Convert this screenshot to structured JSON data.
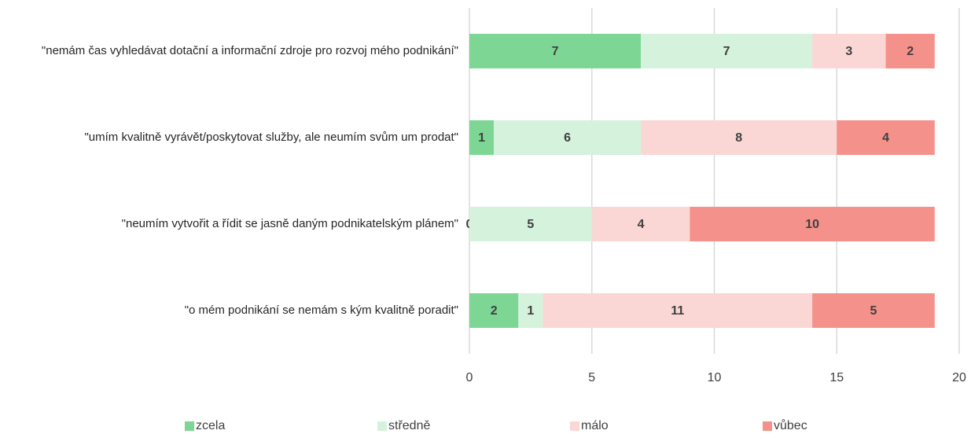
{
  "chart_data": {
    "type": "stacked_bar_horizontal",
    "categories": [
      "\"nemám čas vyhledávat dotační a informační zdroje pro rozvoj mého podnikání\"",
      "\"umím kvalitně vyrávět/poskytovat služby, ale neumím svům um prodat\"",
      "\"neumím vytvořit a řídit se jasně daným podnikatelským plánem\"",
      "\"o mém podnikání se nemám s kým kvalitně poradit\""
    ],
    "series": [
      {
        "name": "zcela",
        "color": "#7dd694",
        "values": [
          7,
          1,
          0,
          2
        ]
      },
      {
        "name": "středně",
        "color": "#d5f2dd",
        "values": [
          7,
          6,
          5,
          1
        ]
      },
      {
        "name": "málo",
        "color": "#fad7d5",
        "values": [
          3,
          8,
          4,
          11
        ]
      },
      {
        "name": "vůbec",
        "color": "#f4918a",
        "values": [
          2,
          4,
          10,
          5
        ]
      }
    ],
    "xlim": [
      0,
      20
    ],
    "xticks": [
      0,
      5,
      10,
      15,
      20
    ],
    "grid": true,
    "legend": "bottom"
  }
}
